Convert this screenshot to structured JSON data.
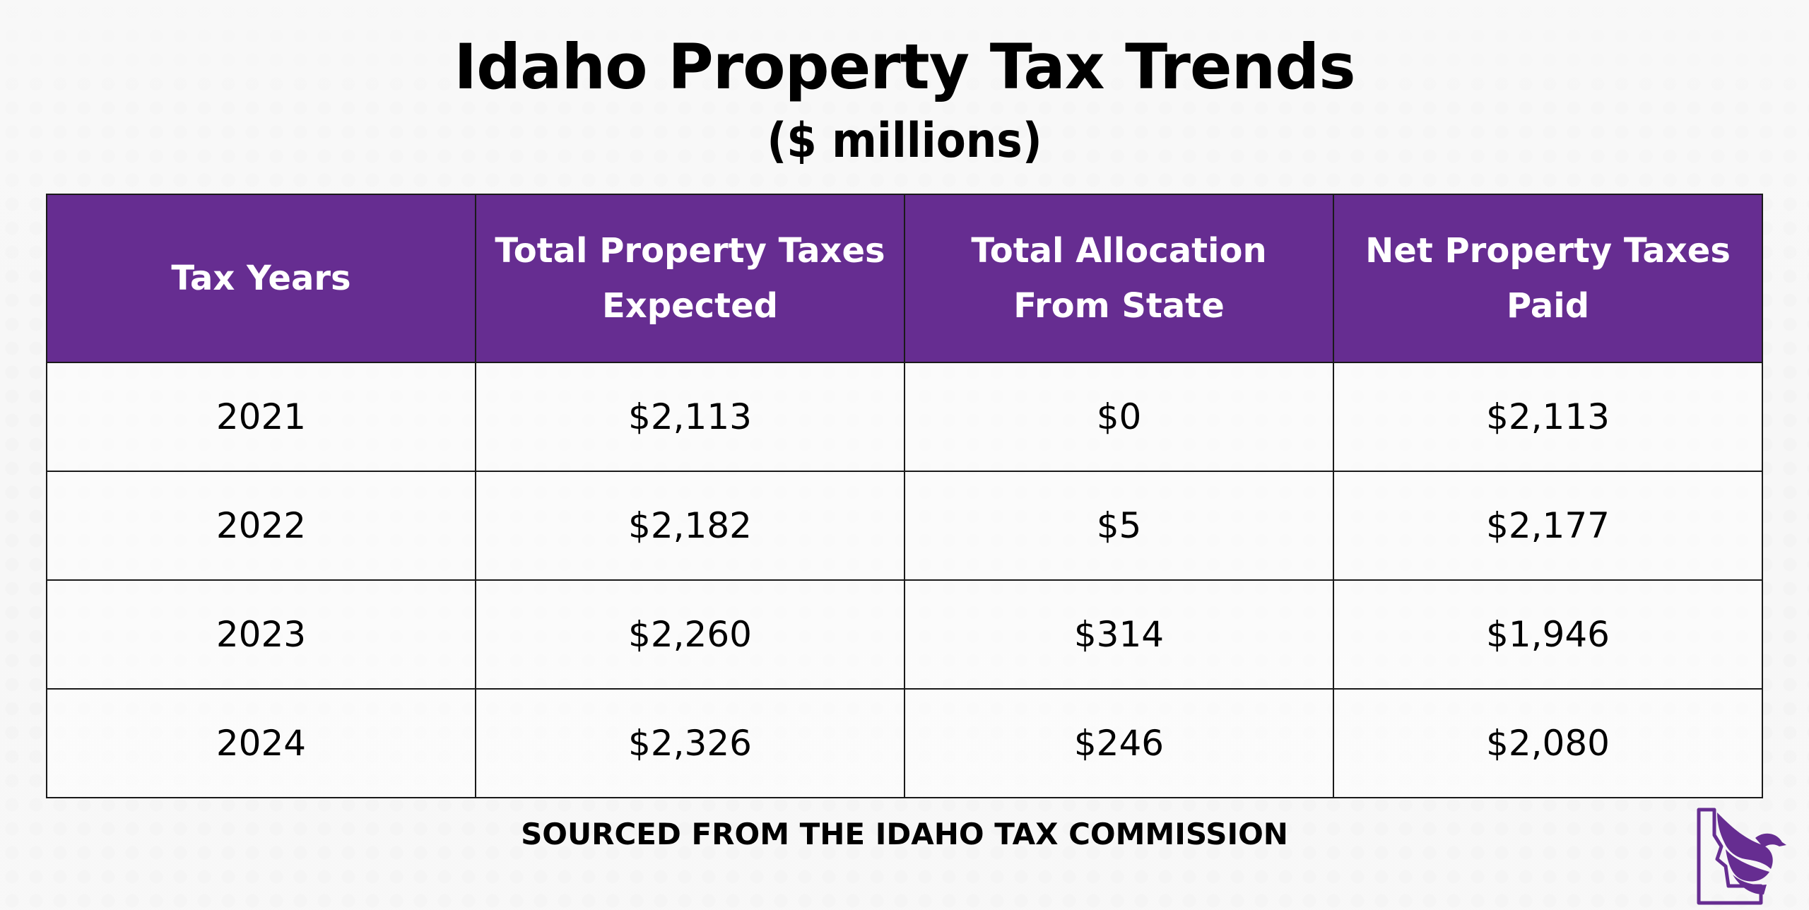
{
  "title": "Idaho Property Tax Trends",
  "subtitle": "($ millions)",
  "chart_data": {
    "type": "table",
    "columns": [
      "Tax Years",
      "Total Property Taxes Expected",
      "Total Allocation From State",
      "Net Property Taxes Paid"
    ],
    "rows": [
      [
        "2021",
        "$2,113",
        "$0",
        "$2,113"
      ],
      [
        "2022",
        "$2,182",
        "$5",
        "$2,177"
      ],
      [
        "2023",
        "$2,260",
        "$314",
        "$1,946"
      ],
      [
        "2024",
        "$2,326",
        "$246",
        "$2,080"
      ]
    ]
  },
  "source": "SOURCED FROM THE IDAHO TAX COMMISSION",
  "colors": {
    "header_background": "#662d91",
    "header_text": "#ffffff",
    "logo": "#662d91"
  },
  "logo_icon": "idaho-eagle-logo-icon"
}
